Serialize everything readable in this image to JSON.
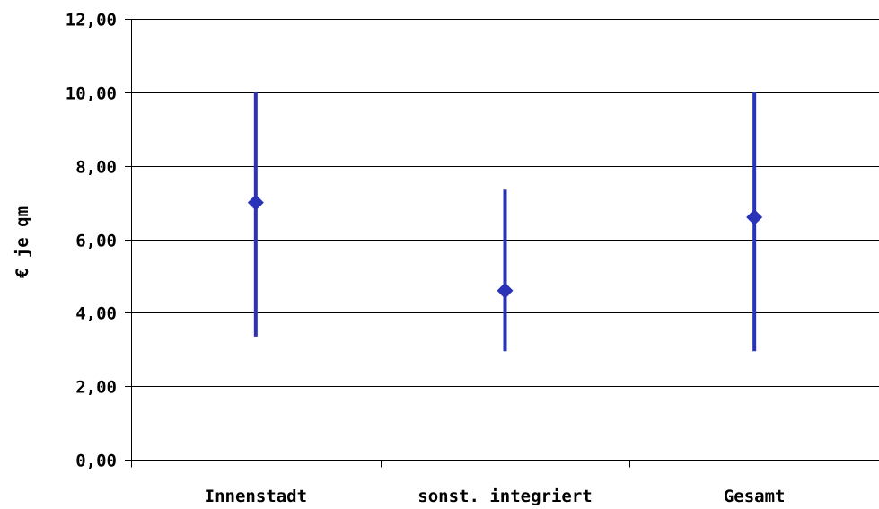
{
  "chart_data": {
    "type": "range",
    "title": "",
    "xlabel": "",
    "ylabel": "€ je qm",
    "ylim": [
      0,
      12
    ],
    "yticks": [
      "0,00",
      "2,00",
      "4,00",
      "6,00",
      "8,00",
      "10,00",
      "12,00"
    ],
    "ytick_values": [
      0,
      2,
      4,
      6,
      8,
      10,
      12
    ],
    "grid": true,
    "categories": [
      "Innenstadt",
      "sonst. integriert",
      "Gesamt"
    ],
    "series": [
      {
        "metric": "min",
        "values": [
          3.35,
          2.95,
          2.95
        ]
      },
      {
        "metric": "max",
        "values": [
          10.0,
          7.35,
          10.0
        ]
      },
      {
        "metric": "mean",
        "values": [
          7.0,
          4.6,
          6.6
        ]
      }
    ],
    "colors": {
      "range_line": "#2a33b8",
      "marker": "#2a33b8",
      "grid": "#000000",
      "axis": "#000000"
    }
  }
}
